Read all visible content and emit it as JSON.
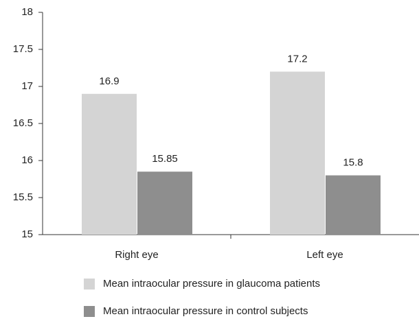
{
  "chart_data": {
    "type": "bar",
    "categories": [
      "Right eye",
      "Left eye"
    ],
    "series": [
      {
        "name": "Mean intraocular pressure in glaucoma patients",
        "color": "#d4d4d4",
        "values": [
          16.9,
          17.2
        ]
      },
      {
        "name": "Mean intraocular pressure in control subjects",
        "color": "#8e8e8e",
        "values": [
          15.85,
          15.8
        ]
      }
    ],
    "ylim": [
      15,
      18
    ],
    "yticks": [
      15,
      15.5,
      16,
      16.5,
      17,
      17.5,
      18
    ],
    "grid": false,
    "legend": "bottom"
  }
}
